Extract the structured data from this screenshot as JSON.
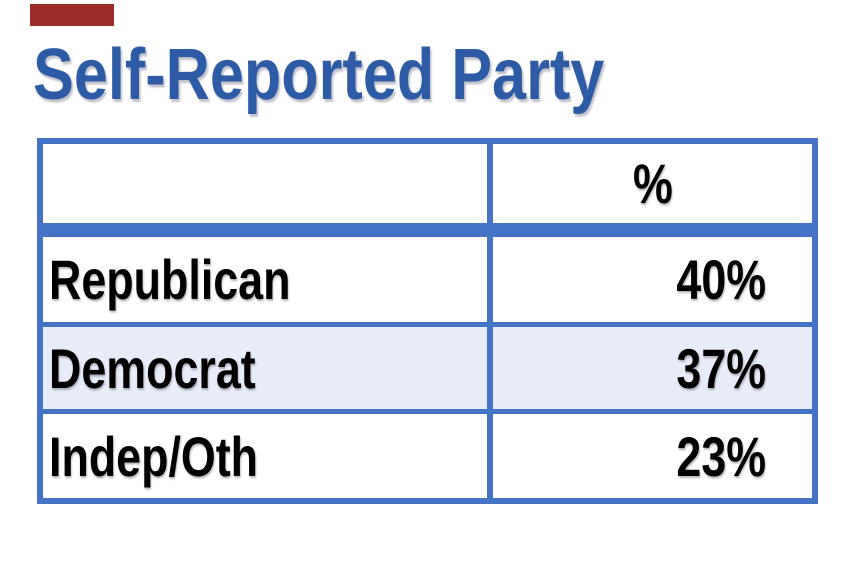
{
  "slide": {
    "background": "#FFFFFF"
  },
  "red_marker": {
    "color": "#9A2B25"
  },
  "title": {
    "text": "Self-Reported Party",
    "color": "#2E5BA6"
  },
  "table": {
    "border_color": "#4472C4",
    "alt_row_color": "#E8ECF8",
    "text_color": "#000000",
    "header": {
      "col1": "",
      "col2": "%"
    },
    "rows": [
      {
        "label": "Republican",
        "value": "40%"
      },
      {
        "label": "Democrat",
        "value": "37%"
      },
      {
        "label": "Indep/Oth",
        "value": "23%"
      }
    ]
  },
  "chart_data": {
    "type": "table",
    "title": "Self-Reported Party",
    "columns": [
      "",
      "%"
    ],
    "categories": [
      "Republican",
      "Democrat",
      "Indep/Oth"
    ],
    "values": [
      40,
      37,
      23
    ],
    "value_format": "percent",
    "legend": "none",
    "notes": "Two-column table; thick blue band separates header from body; Democrat row shaded light blue"
  }
}
